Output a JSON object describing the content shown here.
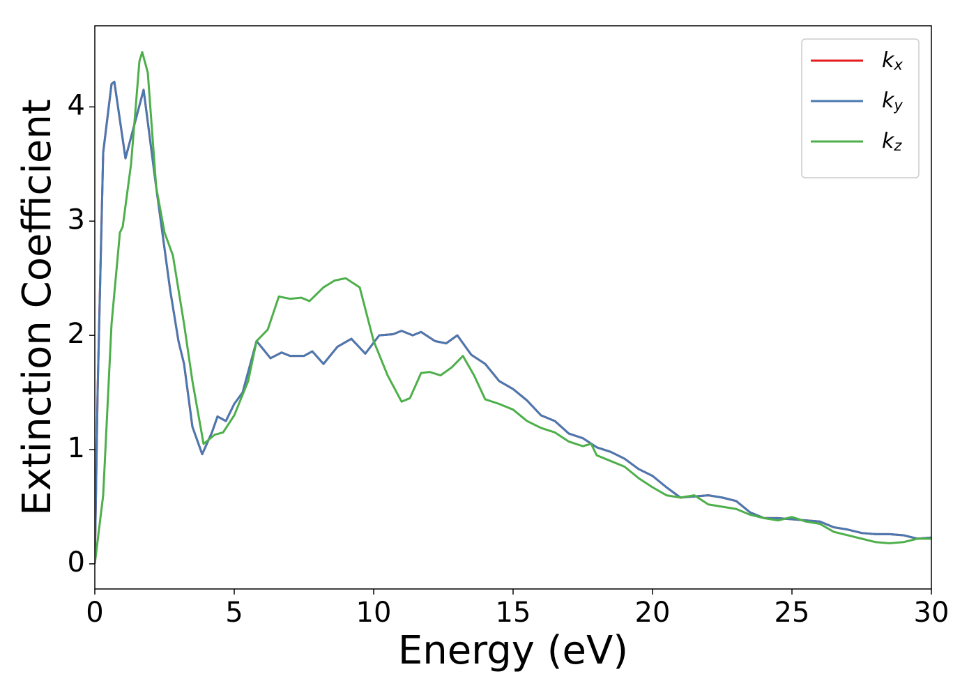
{
  "chart_data": {
    "type": "line",
    "xlabel": "Energy (eV)",
    "ylabel": "Extinction Coefficient",
    "xlim": [
      0,
      30
    ],
    "xticks": [
      0,
      5,
      10,
      15,
      20,
      25,
      30
    ],
    "ylim": [
      -0.22,
      4.71
    ],
    "yticks": [
      0,
      1,
      2,
      3,
      4
    ],
    "grid": false,
    "legend": "upper right",
    "series": [
      {
        "name": "kx",
        "color": "#e41a1c",
        "x": [
          0,
          0.1,
          0.3,
          0.6,
          0.7,
          1.1,
          1.75,
          2.2,
          2.7,
          3.0,
          3.2,
          3.5,
          3.85,
          4.2,
          4.4,
          4.7,
          5.0,
          5.3,
          5.8,
          6.3,
          6.7,
          7.0,
          7.5,
          7.8,
          8.2,
          8.7,
          9.2,
          9.7,
          10.2,
          10.7,
          11.0,
          11.4,
          11.7,
          12.2,
          12.6,
          13.0,
          13.5,
          14.0,
          14.5,
          15.0,
          15.5,
          16.0,
          16.5,
          17.0,
          17.5,
          18.0,
          18.5,
          19.0,
          19.5,
          20.0,
          20.5,
          21.0,
          21.5,
          22.0,
          22.5,
          23.0,
          23.5,
          24.0,
          24.5,
          25.0,
          25.5,
          26.0,
          26.5,
          27.0,
          27.5,
          28.0,
          28.5,
          29.0,
          29.5,
          30.0
        ],
        "values": [
          0,
          1.5,
          3.6,
          4.2,
          4.22,
          3.55,
          4.15,
          3.3,
          2.4,
          1.95,
          1.75,
          1.2,
          0.96,
          1.15,
          1.29,
          1.25,
          1.4,
          1.5,
          1.95,
          1.8,
          1.85,
          1.82,
          1.82,
          1.86,
          1.75,
          1.9,
          1.97,
          1.84,
          2.0,
          2.01,
          2.04,
          2.0,
          2.03,
          1.95,
          1.93,
          2.0,
          1.83,
          1.75,
          1.6,
          1.53,
          1.43,
          1.3,
          1.25,
          1.14,
          1.1,
          1.02,
          0.98,
          0.92,
          0.83,
          0.77,
          0.67,
          0.58,
          0.59,
          0.6,
          0.58,
          0.55,
          0.45,
          0.4,
          0.4,
          0.39,
          0.38,
          0.37,
          0.32,
          0.3,
          0.27,
          0.26,
          0.26,
          0.25,
          0.22,
          0.23
        ]
      },
      {
        "name": "ky",
        "color": "#4a78b0",
        "x": [
          0,
          0.1,
          0.3,
          0.6,
          0.7,
          1.1,
          1.75,
          2.2,
          2.7,
          3.0,
          3.2,
          3.5,
          3.85,
          4.2,
          4.4,
          4.7,
          5.0,
          5.3,
          5.8,
          6.3,
          6.7,
          7.0,
          7.5,
          7.8,
          8.2,
          8.7,
          9.2,
          9.7,
          10.2,
          10.7,
          11.0,
          11.4,
          11.7,
          12.2,
          12.6,
          13.0,
          13.5,
          14.0,
          14.5,
          15.0,
          15.5,
          16.0,
          16.5,
          17.0,
          17.5,
          18.0,
          18.5,
          19.0,
          19.5,
          20.0,
          20.5,
          21.0,
          21.5,
          22.0,
          22.5,
          23.0,
          23.5,
          24.0,
          24.5,
          25.0,
          25.5,
          26.0,
          26.5,
          27.0,
          27.5,
          28.0,
          28.5,
          29.0,
          29.5,
          30.0
        ],
        "values": [
          0,
          1.5,
          3.6,
          4.2,
          4.22,
          3.55,
          4.15,
          3.3,
          2.4,
          1.95,
          1.75,
          1.2,
          0.96,
          1.15,
          1.29,
          1.25,
          1.4,
          1.5,
          1.95,
          1.8,
          1.85,
          1.82,
          1.82,
          1.86,
          1.75,
          1.9,
          1.97,
          1.84,
          2.0,
          2.01,
          2.04,
          2.0,
          2.03,
          1.95,
          1.93,
          2.0,
          1.83,
          1.75,
          1.6,
          1.53,
          1.43,
          1.3,
          1.25,
          1.14,
          1.1,
          1.02,
          0.98,
          0.92,
          0.83,
          0.77,
          0.67,
          0.58,
          0.59,
          0.6,
          0.58,
          0.55,
          0.45,
          0.4,
          0.4,
          0.39,
          0.38,
          0.37,
          0.32,
          0.3,
          0.27,
          0.26,
          0.26,
          0.25,
          0.22,
          0.23
        ]
      },
      {
        "name": "kz",
        "color": "#4daf4a",
        "x": [
          0,
          0.3,
          0.6,
          0.9,
          1.0,
          1.3,
          1.6,
          1.7,
          1.9,
          2.2,
          2.5,
          2.8,
          3.2,
          3.5,
          3.9,
          4.3,
          4.6,
          5.0,
          5.5,
          5.8,
          6.2,
          6.6,
          7.0,
          7.4,
          7.7,
          8.2,
          8.6,
          9.0,
          9.5,
          10.0,
          10.5,
          11.0,
          11.3,
          11.7,
          12.0,
          12.4,
          12.8,
          13.2,
          13.6,
          14.0,
          14.5,
          15.0,
          15.5,
          16.0,
          16.5,
          17.0,
          17.5,
          17.8,
          18.0,
          18.5,
          19.0,
          19.5,
          20.0,
          20.5,
          21.0,
          21.5,
          22.0,
          22.5,
          23.0,
          23.5,
          24.0,
          24.5,
          25.0,
          25.5,
          26.0,
          26.5,
          27.0,
          27.5,
          28.0,
          28.5,
          29.0,
          29.5,
          30.0
        ],
        "values": [
          0,
          0.6,
          2.1,
          2.9,
          2.95,
          3.5,
          4.4,
          4.48,
          4.3,
          3.3,
          2.9,
          2.7,
          2.1,
          1.6,
          1.05,
          1.13,
          1.15,
          1.3,
          1.6,
          1.95,
          2.05,
          2.34,
          2.32,
          2.33,
          2.3,
          2.42,
          2.48,
          2.5,
          2.42,
          1.95,
          1.65,
          1.42,
          1.45,
          1.67,
          1.68,
          1.65,
          1.72,
          1.82,
          1.65,
          1.44,
          1.4,
          1.35,
          1.25,
          1.19,
          1.15,
          1.07,
          1.03,
          1.05,
          0.95,
          0.9,
          0.85,
          0.75,
          0.67,
          0.6,
          0.58,
          0.6,
          0.52,
          0.5,
          0.48,
          0.43,
          0.4,
          0.38,
          0.41,
          0.37,
          0.35,
          0.28,
          0.25,
          0.22,
          0.19,
          0.18,
          0.19,
          0.22,
          0.22
        ]
      }
    ]
  }
}
